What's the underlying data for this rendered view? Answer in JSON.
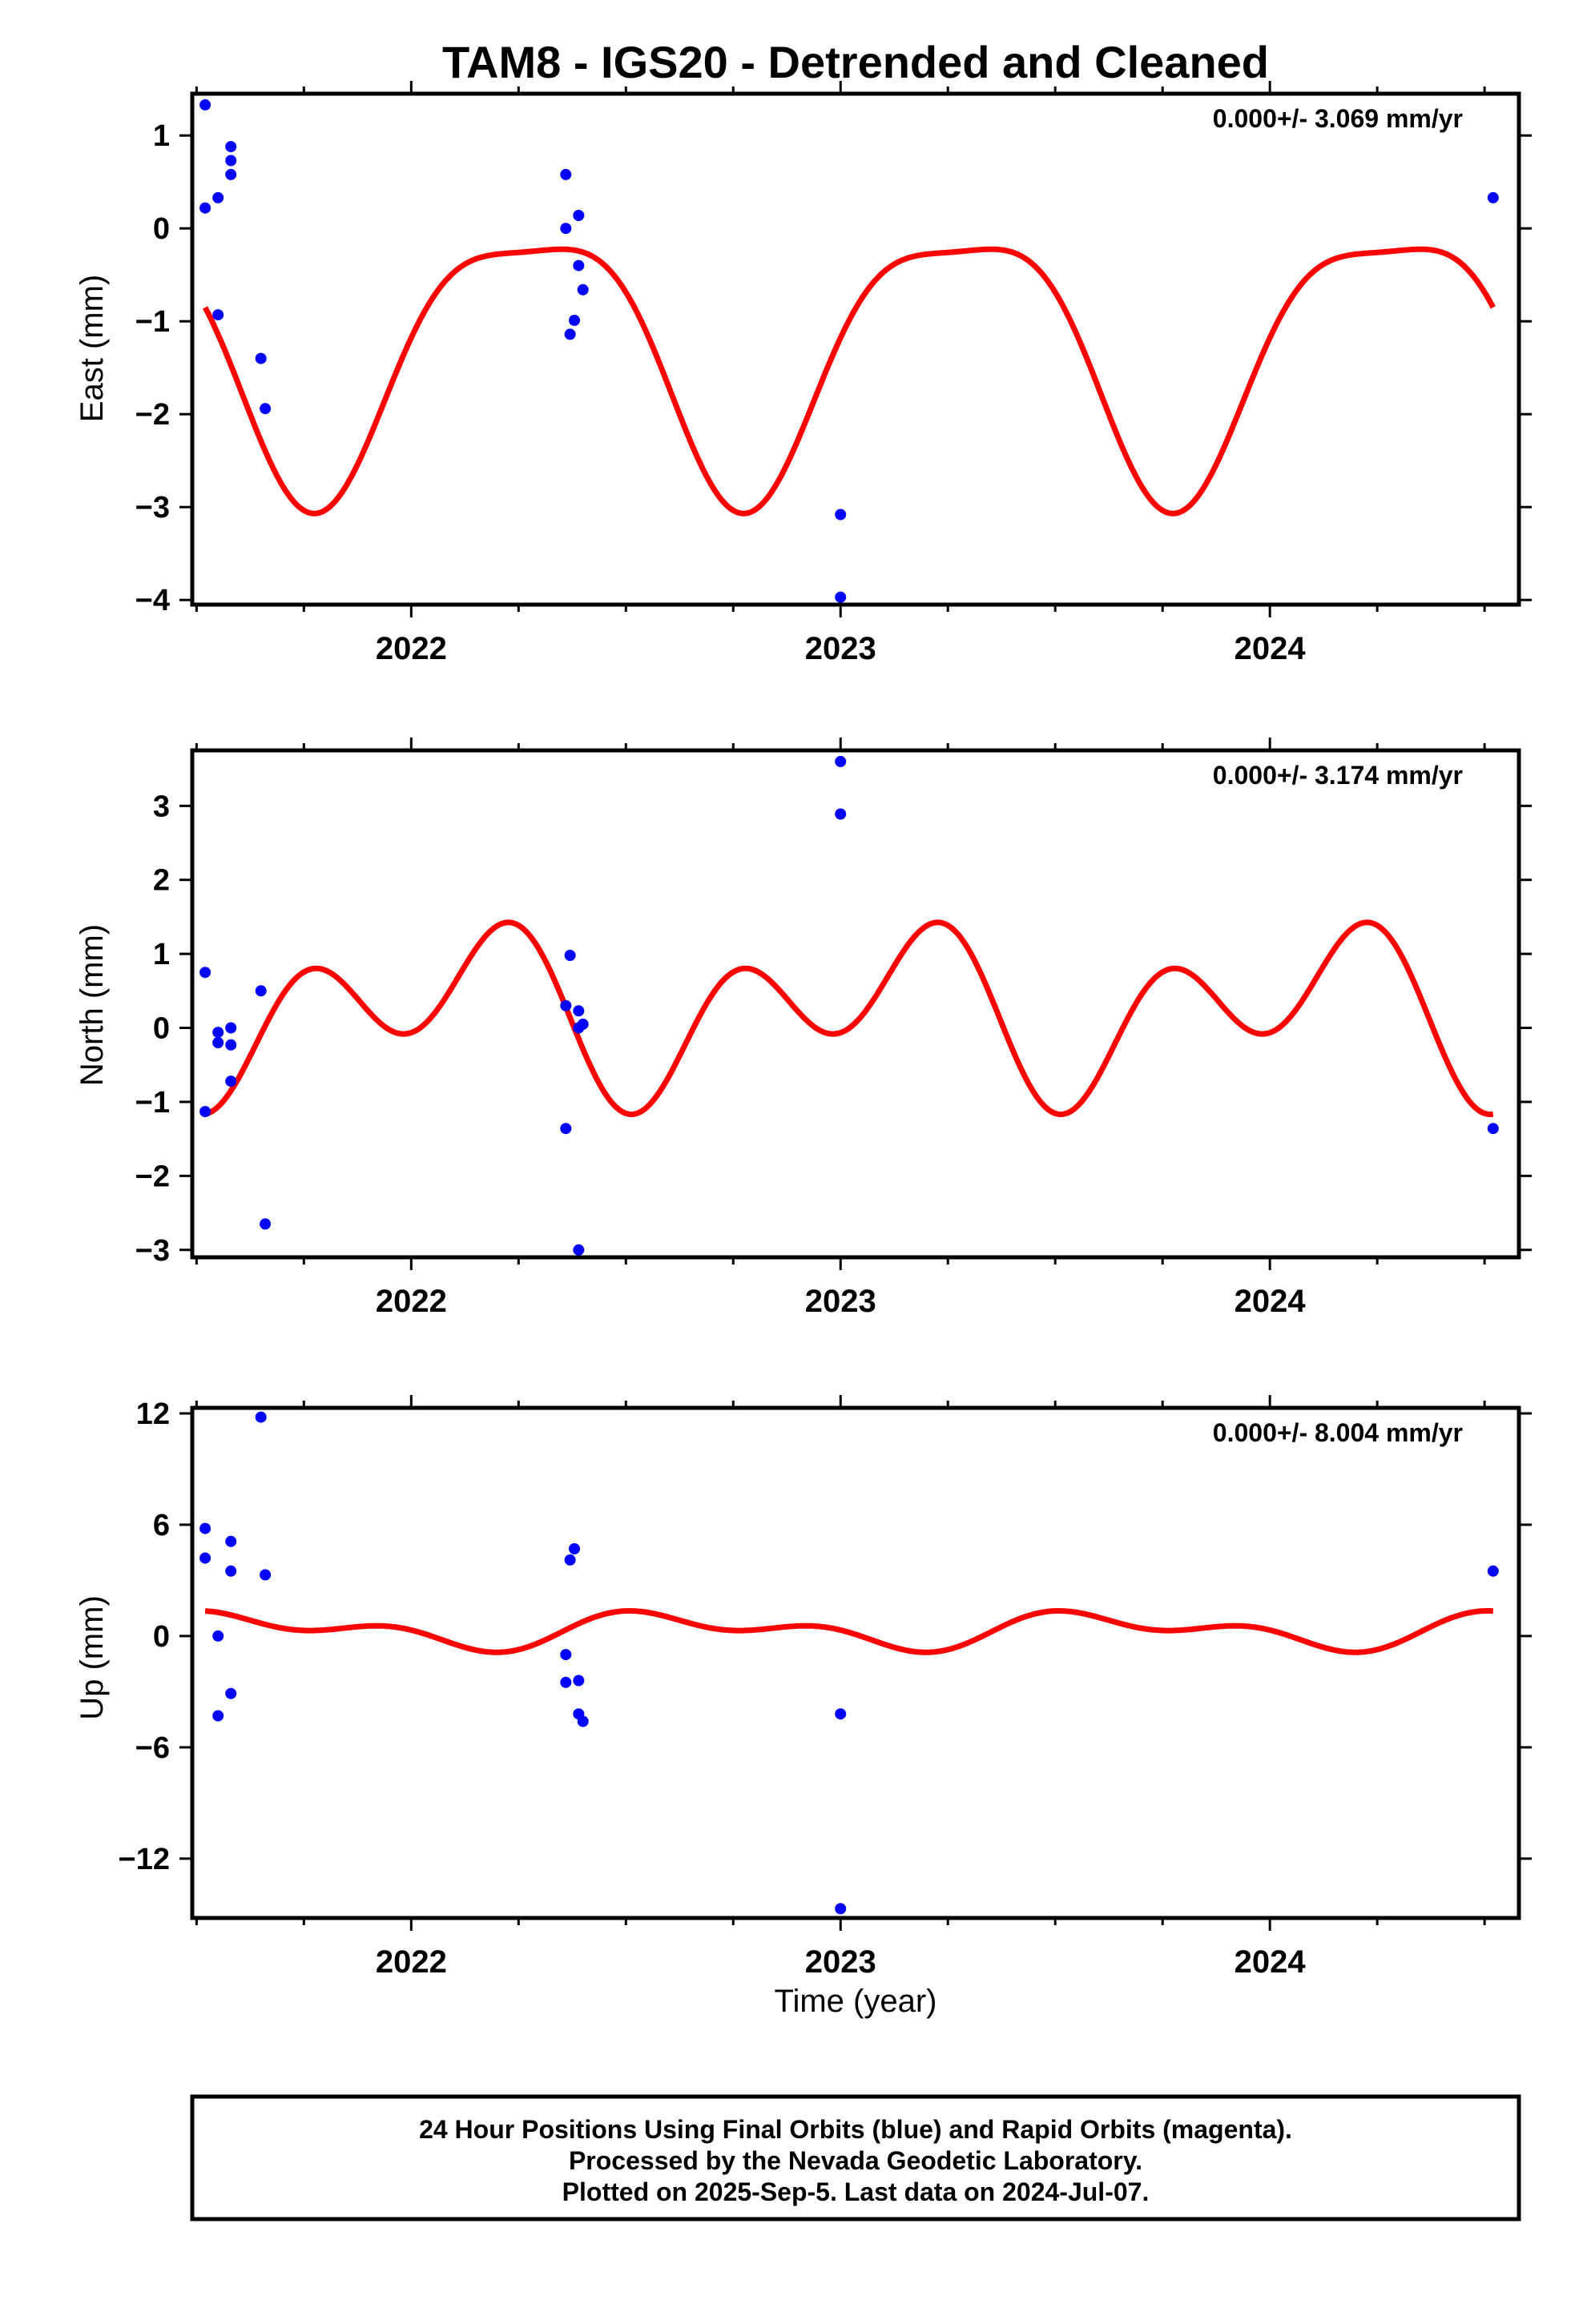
{
  "title": "TAM8 - IGS20 - Detrended and Cleaned",
  "xlabel": "Time (year)",
  "footer": [
    "24 Hour Positions Using Final Orbits (blue) and Rapid Orbits (magenta).",
    "Processed by the Nevada Geodetic Laboratory.",
    "Plotted on 2025-Sep-5. Last data on 2024-Jul-07."
  ],
  "colors": {
    "points": "#0000ff",
    "model": "#ff0000",
    "frame": "#000000"
  },
  "chart_data": [
    {
      "type": "scatter",
      "ylabel": "East (mm)",
      "rate": "0.000+/- 3.069 mm/yr",
      "xlim": [
        2021.49,
        2024.58
      ],
      "ylim": [
        -4.05,
        1.45
      ],
      "yticks": [
        1,
        0,
        -1,
        -2,
        -3,
        -4
      ],
      "ytick_labels": [
        "1",
        "0",
        "−1",
        "−2",
        "−3",
        "−4"
      ],
      "xticks": [
        2022,
        2023,
        2024
      ],
      "xtick_labels": [
        "2022",
        "2023",
        "2024"
      ],
      "model": {
        "mean": -1.29,
        "annual_amp": 1.41,
        "annual_phase_deg": 100,
        "semiannual_amp": 0.37,
        "semiannual_phase_deg": 15
      },
      "series": [
        {
          "x": [
            2021.52,
            2021.52,
            2021.55,
            2021.55,
            2021.58,
            2021.58,
            2021.58,
            2021.65,
            2021.66,
            2022.36,
            2022.36,
            2022.37,
            2022.38,
            2022.39,
            2022.39,
            2022.4,
            2023.0,
            2023.0,
            2024.52
          ],
          "y": [
            1.33,
            0.22,
            0.33,
            -0.93,
            0.88,
            0.73,
            0.58,
            -1.4,
            -1.94,
            0.58,
            0.0,
            -1.14,
            -0.99,
            -0.4,
            0.14,
            -0.66,
            -3.08,
            -3.97,
            0.33
          ]
        }
      ]
    },
    {
      "type": "scatter",
      "ylabel": "North (mm)",
      "rate": "0.000+/- 3.174 mm/yr",
      "xlim": [
        2021.49,
        2024.58
      ],
      "ylim": [
        -3.1,
        3.75
      ],
      "yticks": [
        3,
        2,
        1,
        0,
        -1,
        -2,
        -3
      ],
      "ytick_labels": [
        "3",
        "2",
        "1",
        "0",
        "−1",
        "−2",
        "−3"
      ],
      "xticks": [
        2022,
        2023,
        2024
      ],
      "xtick_labels": [
        "2022",
        "2023",
        "2024"
      ],
      "model": {
        "mean": 0.23,
        "annual_amp": 0.63,
        "annual_phase_deg": 30,
        "semiannual_amp": 0.84,
        "semiannual_phase_deg": 180
      },
      "series": [
        {
          "x": [
            2021.52,
            2021.52,
            2021.55,
            2021.55,
            2021.58,
            2021.58,
            2021.58,
            2021.65,
            2021.66,
            2022.36,
            2022.36,
            2022.37,
            2022.39,
            2022.39,
            2022.4,
            2022.39,
            2023.0,
            2023.0,
            2024.52
          ],
          "y": [
            0.75,
            -1.13,
            -0.06,
            -0.2,
            0.0,
            -0.23,
            -0.72,
            0.5,
            -2.65,
            0.3,
            -1.36,
            0.98,
            0.0,
            0.23,
            0.05,
            -3.0,
            3.6,
            2.89,
            -1.36
          ]
        }
      ]
    },
    {
      "type": "scatter",
      "ylabel": "Up (mm)",
      "rate": "0.000+/- 8.004 mm/yr",
      "xlim": [
        2021.49,
        2024.58
      ],
      "ylim": [
        -15.2,
        12.3
      ],
      "yticks": [
        12,
        6,
        0,
        -6,
        -12
      ],
      "ytick_labels": [
        "12",
        "6",
        "0",
        "−6",
        "−12"
      ],
      "xticks": [
        2022,
        2023,
        2024
      ],
      "xtick_labels": [
        "2022",
        "2023",
        "2024"
      ],
      "model": {
        "mean": 0.31,
        "annual_amp": 0.73,
        "annual_phase_deg": 225,
        "semiannual_amp": 0.56,
        "semiannual_phase_deg": -20
      },
      "series": [
        {
          "x": [
            2021.52,
            2021.52,
            2021.55,
            2021.55,
            2021.58,
            2021.58,
            2021.58,
            2021.65,
            2021.66,
            2022.36,
            2022.36,
            2022.37,
            2022.38,
            2022.39,
            2022.39,
            2022.4,
            2023.0,
            2023.0,
            2024.52
          ],
          "y": [
            5.8,
            4.2,
            0.0,
            -4.3,
            5.1,
            3.5,
            -3.1,
            11.8,
            3.3,
            -1.0,
            -2.5,
            4.1,
            4.7,
            -4.2,
            -2.4,
            -4.6,
            -4.2,
            -14.7,
            3.5
          ]
        }
      ]
    }
  ]
}
